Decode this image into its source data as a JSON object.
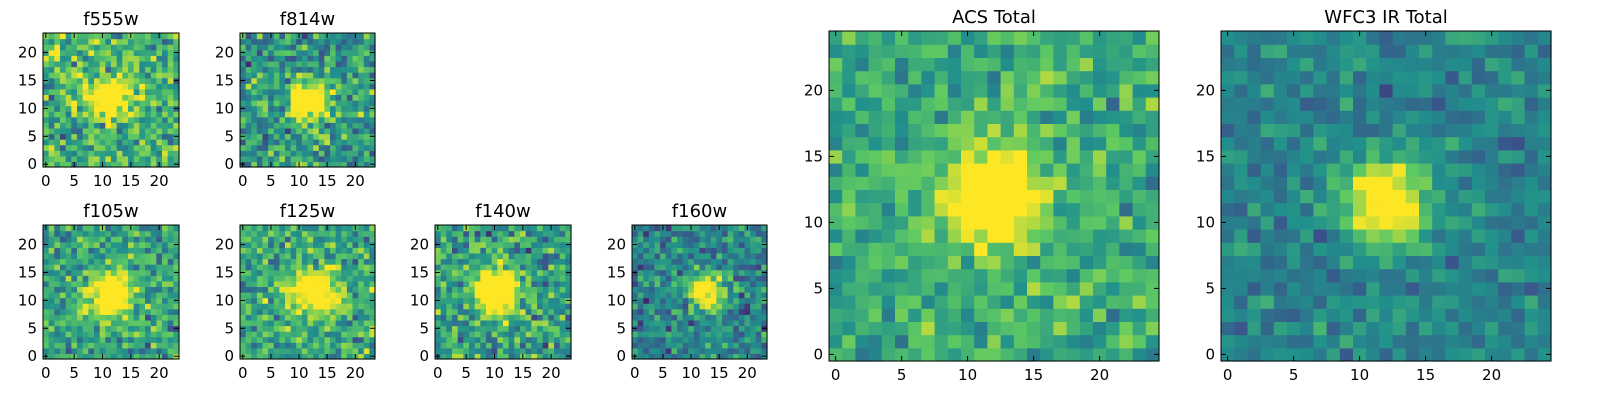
{
  "chart_data": [
    {
      "id": "p-f555w",
      "type": "heatmap",
      "title": "f555w",
      "xlabel": "",
      "ylabel": "",
      "xlim": [
        0,
        24
      ],
      "ylim": [
        0,
        24
      ],
      "xticks": [
        0,
        5,
        10,
        15,
        20
      ],
      "yticks": [
        0,
        5,
        10,
        15,
        20
      ],
      "grid_size": 24,
      "source_center": [
        11,
        12
      ],
      "source_width": 2.2,
      "source_peak": 0.9,
      "background": 0.66,
      "noise": 0.32,
      "seed": 11
    },
    {
      "id": "p-f814w",
      "type": "heatmap",
      "title": "f814w",
      "xlabel": "",
      "ylabel": "",
      "xlim": [
        0,
        24
      ],
      "ylim": [
        0,
        24
      ],
      "xticks": [
        0,
        5,
        10,
        15,
        20
      ],
      "yticks": [
        0,
        5,
        10,
        15,
        20
      ],
      "grid_size": 24,
      "source_center": [
        12,
        11.5
      ],
      "source_width": 2.2,
      "source_peak": 0.9,
      "background": 0.55,
      "noise": 0.32,
      "seed": 23
    },
    {
      "id": "p-f105w",
      "type": "heatmap",
      "title": "f105w",
      "xlabel": "",
      "ylabel": "",
      "xlim": [
        0,
        24
      ],
      "ylim": [
        0,
        24
      ],
      "xticks": [
        0,
        5,
        10,
        15,
        20
      ],
      "yticks": [
        0,
        5,
        10,
        15,
        20
      ],
      "grid_size": 24,
      "source_center": [
        11.5,
        11
      ],
      "source_width": 2.6,
      "source_peak": 0.85,
      "background": 0.58,
      "noise": 0.28,
      "seed": 37
    },
    {
      "id": "p-f125w",
      "type": "heatmap",
      "title": "f125w",
      "xlabel": "",
      "ylabel": "",
      "xlim": [
        0,
        24
      ],
      "ylim": [
        0,
        24
      ],
      "xticks": [
        0,
        5,
        10,
        15,
        20
      ],
      "yticks": [
        0,
        5,
        10,
        15,
        20
      ],
      "grid_size": 24,
      "source_center": [
        13,
        11.5
      ],
      "source_width": 2.6,
      "source_peak": 0.85,
      "background": 0.6,
      "noise": 0.3,
      "seed": 41
    },
    {
      "id": "p-f140w",
      "type": "heatmap",
      "title": "f140w",
      "xlabel": "",
      "ylabel": "",
      "xlim": [
        0,
        24
      ],
      "ylim": [
        0,
        24
      ],
      "xticks": [
        0,
        5,
        10,
        15,
        20
      ],
      "yticks": [
        0,
        5,
        10,
        15,
        20
      ],
      "grid_size": 24,
      "source_center": [
        10.5,
        11.5
      ],
      "source_width": 2.6,
      "source_peak": 0.9,
      "background": 0.57,
      "noise": 0.3,
      "seed": 53
    },
    {
      "id": "p-f160w",
      "type": "heatmap",
      "title": "f160w",
      "xlabel": "",
      "ylabel": "",
      "xlim": [
        0,
        24
      ],
      "ylim": [
        0,
        24
      ],
      "xticks": [
        0,
        5,
        10,
        15,
        20
      ],
      "yticks": [
        0,
        5,
        10,
        15,
        20
      ],
      "grid_size": 24,
      "source_center": [
        12.5,
        11.5
      ],
      "source_width": 2.2,
      "source_peak": 0.8,
      "background": 0.45,
      "noise": 0.26,
      "seed": 67
    },
    {
      "id": "p-acs",
      "type": "heatmap",
      "title": "ACS Total",
      "xlabel": "",
      "ylabel": "",
      "xlim": [
        0,
        24
      ],
      "ylim": [
        0,
        24
      ],
      "xticks": [
        0,
        5,
        10,
        15,
        20
      ],
      "yticks": [
        0,
        5,
        10,
        15,
        20
      ],
      "grid_size": 25,
      "source_center": [
        12,
        12
      ],
      "source_width": 2.6,
      "source_peak": 0.72,
      "background": 0.62,
      "noise": 0.22,
      "seed": 79
    },
    {
      "id": "p-wfc3",
      "type": "heatmap",
      "title": "WFC3 IR Total",
      "xlabel": "",
      "ylabel": "",
      "xlim": [
        0,
        24
      ],
      "ylim": [
        0,
        24
      ],
      "xticks": [
        0,
        5,
        10,
        15,
        20
      ],
      "yticks": [
        0,
        5,
        10,
        15,
        20
      ],
      "grid_size": 25,
      "source_center": [
        12,
        11.5
      ],
      "source_width": 2.2,
      "source_peak": 0.75,
      "background": 0.45,
      "noise": 0.16,
      "seed": 97
    }
  ],
  "colormap": [
    "#440154",
    "#3b528b",
    "#21918c",
    "#5ec962",
    "#fde725"
  ]
}
